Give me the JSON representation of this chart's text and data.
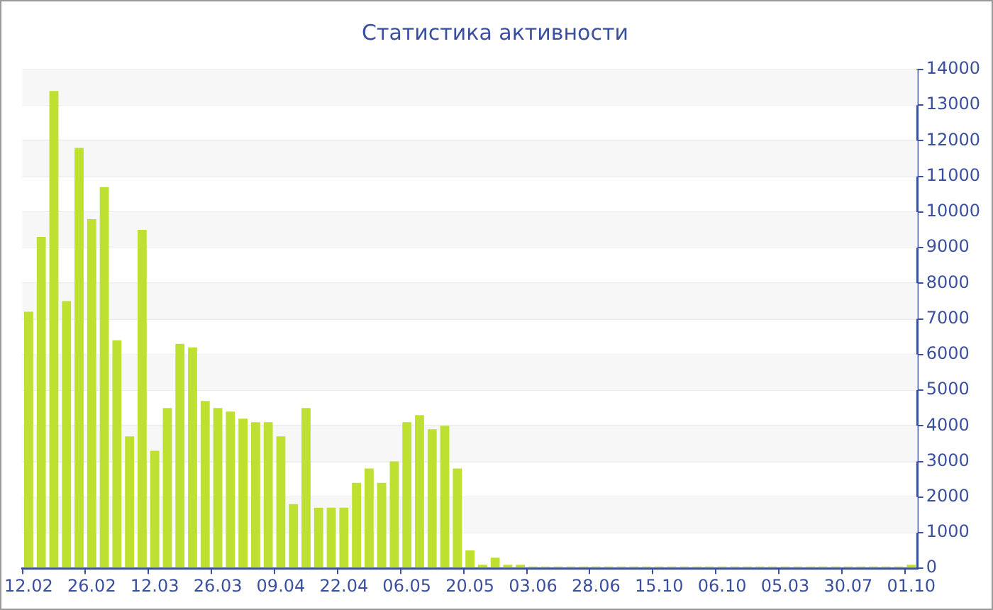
{
  "chart_data": {
    "type": "bar",
    "title": "Статистика активности",
    "categories": [
      "12.02",
      null,
      null,
      null,
      null,
      "26.02",
      null,
      null,
      null,
      null,
      "12.03",
      null,
      null,
      null,
      null,
      "26.03",
      null,
      null,
      null,
      null,
      "09.04",
      null,
      null,
      null,
      null,
      "22.04",
      null,
      null,
      null,
      null,
      "06.05",
      null,
      null,
      null,
      null,
      "20.05",
      null,
      null,
      null,
      null,
      "03.06",
      null,
      null,
      null,
      null,
      "28.06",
      null,
      null,
      null,
      null,
      "15.10",
      null,
      null,
      null,
      null,
      "06.10",
      null,
      null,
      null,
      null,
      "05.03",
      null,
      null,
      null,
      null,
      "30.07",
      null,
      null,
      null,
      null,
      "01.10"
    ],
    "values": [
      7200,
      9300,
      13400,
      7500,
      11800,
      9800,
      10700,
      6400,
      3700,
      9500,
      3300,
      4500,
      6300,
      6200,
      4700,
      4500,
      4400,
      4200,
      4100,
      4100,
      3700,
      1800,
      4500,
      1700,
      1700,
      1700,
      2400,
      2800,
      2400,
      3000,
      4100,
      4300,
      3900,
      4000,
      2800,
      500,
      100,
      300,
      100,
      100,
      50,
      50,
      50,
      50,
      50,
      50,
      50,
      50,
      50,
      50,
      50,
      50,
      50,
      50,
      50,
      50,
      50,
      50,
      50,
      50,
      50,
      50,
      50,
      50,
      50,
      50,
      50,
      50,
      50,
      50,
      100
    ],
    "color": "#bde031",
    "ylim": [
      0,
      14000
    ],
    "yticks": [
      0,
      1000,
      2000,
      3000,
      4000,
      5000,
      6000,
      7000,
      8000,
      9000,
      10000,
      11000,
      12000,
      13000,
      14000
    ],
    "grid": "y"
  }
}
